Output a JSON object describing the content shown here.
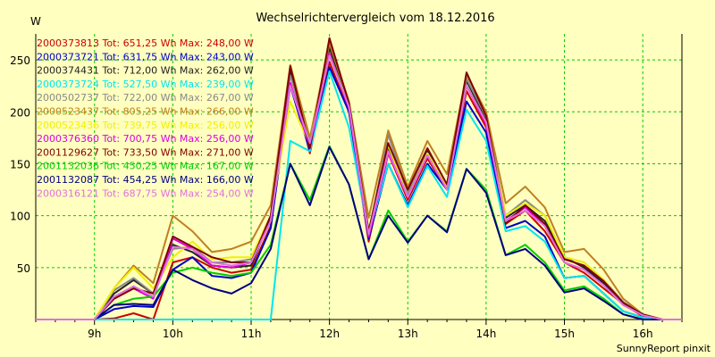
{
  "chart_data": {
    "type": "line",
    "title": "Wechselrichtervergleich vom 18.12.2016",
    "unit_label": "W",
    "footer": "SunnyReport pinxit",
    "x_tick_labels": [
      "9h",
      "10h",
      "11h",
      "12h",
      "13h",
      "14h",
      "15h",
      "16h"
    ],
    "x_tick_values": [
      9,
      10,
      11,
      12,
      13,
      14,
      15,
      16
    ],
    "x_range": [
      8.25,
      16.5
    ],
    "ylim": [
      0,
      275
    ],
    "y_ticks": [
      50,
      100,
      150,
      200,
      250
    ],
    "grid": true,
    "legend_position": "top-left",
    "x": [
      8.25,
      8.5,
      8.75,
      9.0,
      9.25,
      9.5,
      9.75,
      10.0,
      10.25,
      10.5,
      10.75,
      11.0,
      11.25,
      11.5,
      11.75,
      12.0,
      12.25,
      12.5,
      12.75,
      13.0,
      13.25,
      13.5,
      13.75,
      14.0,
      14.25,
      14.5,
      14.75,
      15.0,
      15.25,
      15.5,
      15.75,
      16.0,
      16.25,
      16.5
    ],
    "series": [
      {
        "name": "2000373813",
        "legend": "2000373813 Tot: 651,25 Wh Max: 248,00 W",
        "color": "#cc0000",
        "values": [
          0,
          0,
          0,
          0,
          1,
          6,
          0,
          55,
          60,
          50,
          45,
          48,
          90,
          240,
          160,
          248,
          200,
          75,
          160,
          115,
          155,
          125,
          220,
          185,
          92,
          105,
          85,
          55,
          45,
          30,
          15,
          3,
          0,
          0
        ]
      },
      {
        "name": "2000373721",
        "legend": "2000373721 Tot: 631,75 Wh Max: 243,00 W",
        "color": "#0000cc",
        "values": [
          0,
          0,
          0,
          0,
          10,
          13,
          12,
          48,
          60,
          42,
          40,
          45,
          88,
          225,
          162,
          243,
          200,
          78,
          150,
          110,
          150,
          125,
          210,
          180,
          88,
          95,
          80,
          40,
          42,
          25,
          8,
          2,
          0,
          0
        ]
      },
      {
        "name": "2000374431",
        "legend": "2000374431 Tot: 712,00 Wh Max: 262,00 W",
        "color": "#222222",
        "values": [
          0,
          0,
          0,
          0,
          25,
          38,
          25,
          72,
          65,
          52,
          50,
          52,
          98,
          240,
          168,
          262,
          205,
          82,
          165,
          120,
          162,
          128,
          230,
          192,
          98,
          110,
          95,
          60,
          50,
          35,
          15,
          5,
          0,
          0
        ]
      },
      {
        "name": "2000373724",
        "legend": "2000373724 Tot: 527,50 Wh Max: 239,00 W",
        "color": "#00e5ee",
        "values": [
          0,
          0,
          0,
          0,
          0,
          0,
          0,
          0,
          0,
          0,
          0,
          0,
          0,
          172,
          162,
          239,
          185,
          82,
          150,
          108,
          148,
          118,
          202,
          172,
          85,
          90,
          75,
          40,
          42,
          25,
          8,
          2,
          0,
          0
        ]
      },
      {
        "name": "2000502737",
        "legend": "2000502737 Tot: 722,00 Wh Max: 267,00 W",
        "color": "#888888",
        "values": [
          0,
          0,
          0,
          0,
          28,
          40,
          25,
          68,
          70,
          55,
          55,
          58,
          100,
          235,
          172,
          267,
          208,
          82,
          178,
          122,
          160,
          130,
          232,
          195,
          100,
          115,
          100,
          60,
          55,
          38,
          17,
          5,
          0,
          0
        ]
      },
      {
        "name": "2000523437",
        "legend": "2000523437 Tot: 805,25 Wh Max: 266,00 W",
        "color": "#c08020",
        "values": [
          0,
          0,
          0,
          0,
          30,
          52,
          35,
          100,
          85,
          65,
          68,
          75,
          110,
          245,
          175,
          266,
          210,
          98,
          182,
          128,
          172,
          140,
          236,
          200,
          112,
          128,
          108,
          65,
          68,
          48,
          20,
          5,
          0,
          0
        ]
      },
      {
        "name": "2000523436",
        "legend": "2000523436 Tot: 739,75 Wh Max: 256,00 W",
        "color": "#f0f000",
        "values": [
          0,
          0,
          0,
          0,
          30,
          50,
          30,
          60,
          75,
          58,
          60,
          60,
          100,
          210,
          168,
          256,
          205,
          85,
          168,
          118,
          160,
          128,
          225,
          190,
          100,
          112,
          100,
          60,
          55,
          38,
          15,
          5,
          0,
          0
        ]
      },
      {
        "name": "2000376360",
        "legend": "2000376360 Tot: 700,75 Wh Max: 256,00 W",
        "color": "#e000e0",
        "values": [
          0,
          0,
          0,
          0,
          20,
          30,
          20,
          78,
          68,
          52,
          50,
          55,
          95,
          228,
          165,
          256,
          203,
          80,
          160,
          118,
          158,
          125,
          225,
          188,
          95,
          108,
          90,
          55,
          48,
          33,
          14,
          4,
          0,
          0
        ]
      },
      {
        "name": "2001129627",
        "legend": "2001129627 Tot: 733,50 Wh Max: 271,00 W",
        "color": "#800000",
        "values": [
          0,
          0,
          0,
          0,
          20,
          30,
          25,
          80,
          70,
          60,
          55,
          55,
          100,
          244,
          165,
          271,
          208,
          85,
          170,
          125,
          165,
          130,
          238,
          196,
          92,
          110,
          92,
          58,
          52,
          37,
          16,
          5,
          0,
          0
        ]
      },
      {
        "name": "2001132036",
        "legend": "2001132036 Tot: 450,25 Wh Max: 167,00 W",
        "color": "#00cc00",
        "values": [
          0,
          0,
          0,
          0,
          14,
          20,
          22,
          45,
          50,
          45,
          42,
          45,
          72,
          150,
          115,
          167,
          130,
          58,
          105,
          75,
          100,
          85,
          145,
          125,
          62,
          72,
          55,
          28,
          32,
          20,
          5,
          0,
          0,
          0
        ]
      },
      {
        "name": "2001132087",
        "legend": "2001132087 Tot: 454,25 Wh Max: 166,00 W",
        "color": "#000080",
        "values": [
          0,
          0,
          0,
          0,
          14,
          15,
          14,
          48,
          38,
          30,
          25,
          35,
          68,
          150,
          110,
          166,
          130,
          58,
          100,
          74,
          100,
          84,
          145,
          122,
          62,
          68,
          52,
          26,
          30,
          18,
          5,
          0,
          0,
          0
        ]
      },
      {
        "name": "2000316121",
        "legend": "2000316121 Tot: 687,75 Wh Max: 254,00 W",
        "color": "#e070e0",
        "values": [
          0,
          0,
          0,
          0,
          22,
          32,
          22,
          70,
          68,
          55,
          52,
          55,
          95,
          225,
          170,
          254,
          205,
          82,
          162,
          118,
          158,
          125,
          225,
          190,
          95,
          105,
          90,
          55,
          48,
          33,
          14,
          4,
          0,
          0
        ]
      }
    ]
  }
}
